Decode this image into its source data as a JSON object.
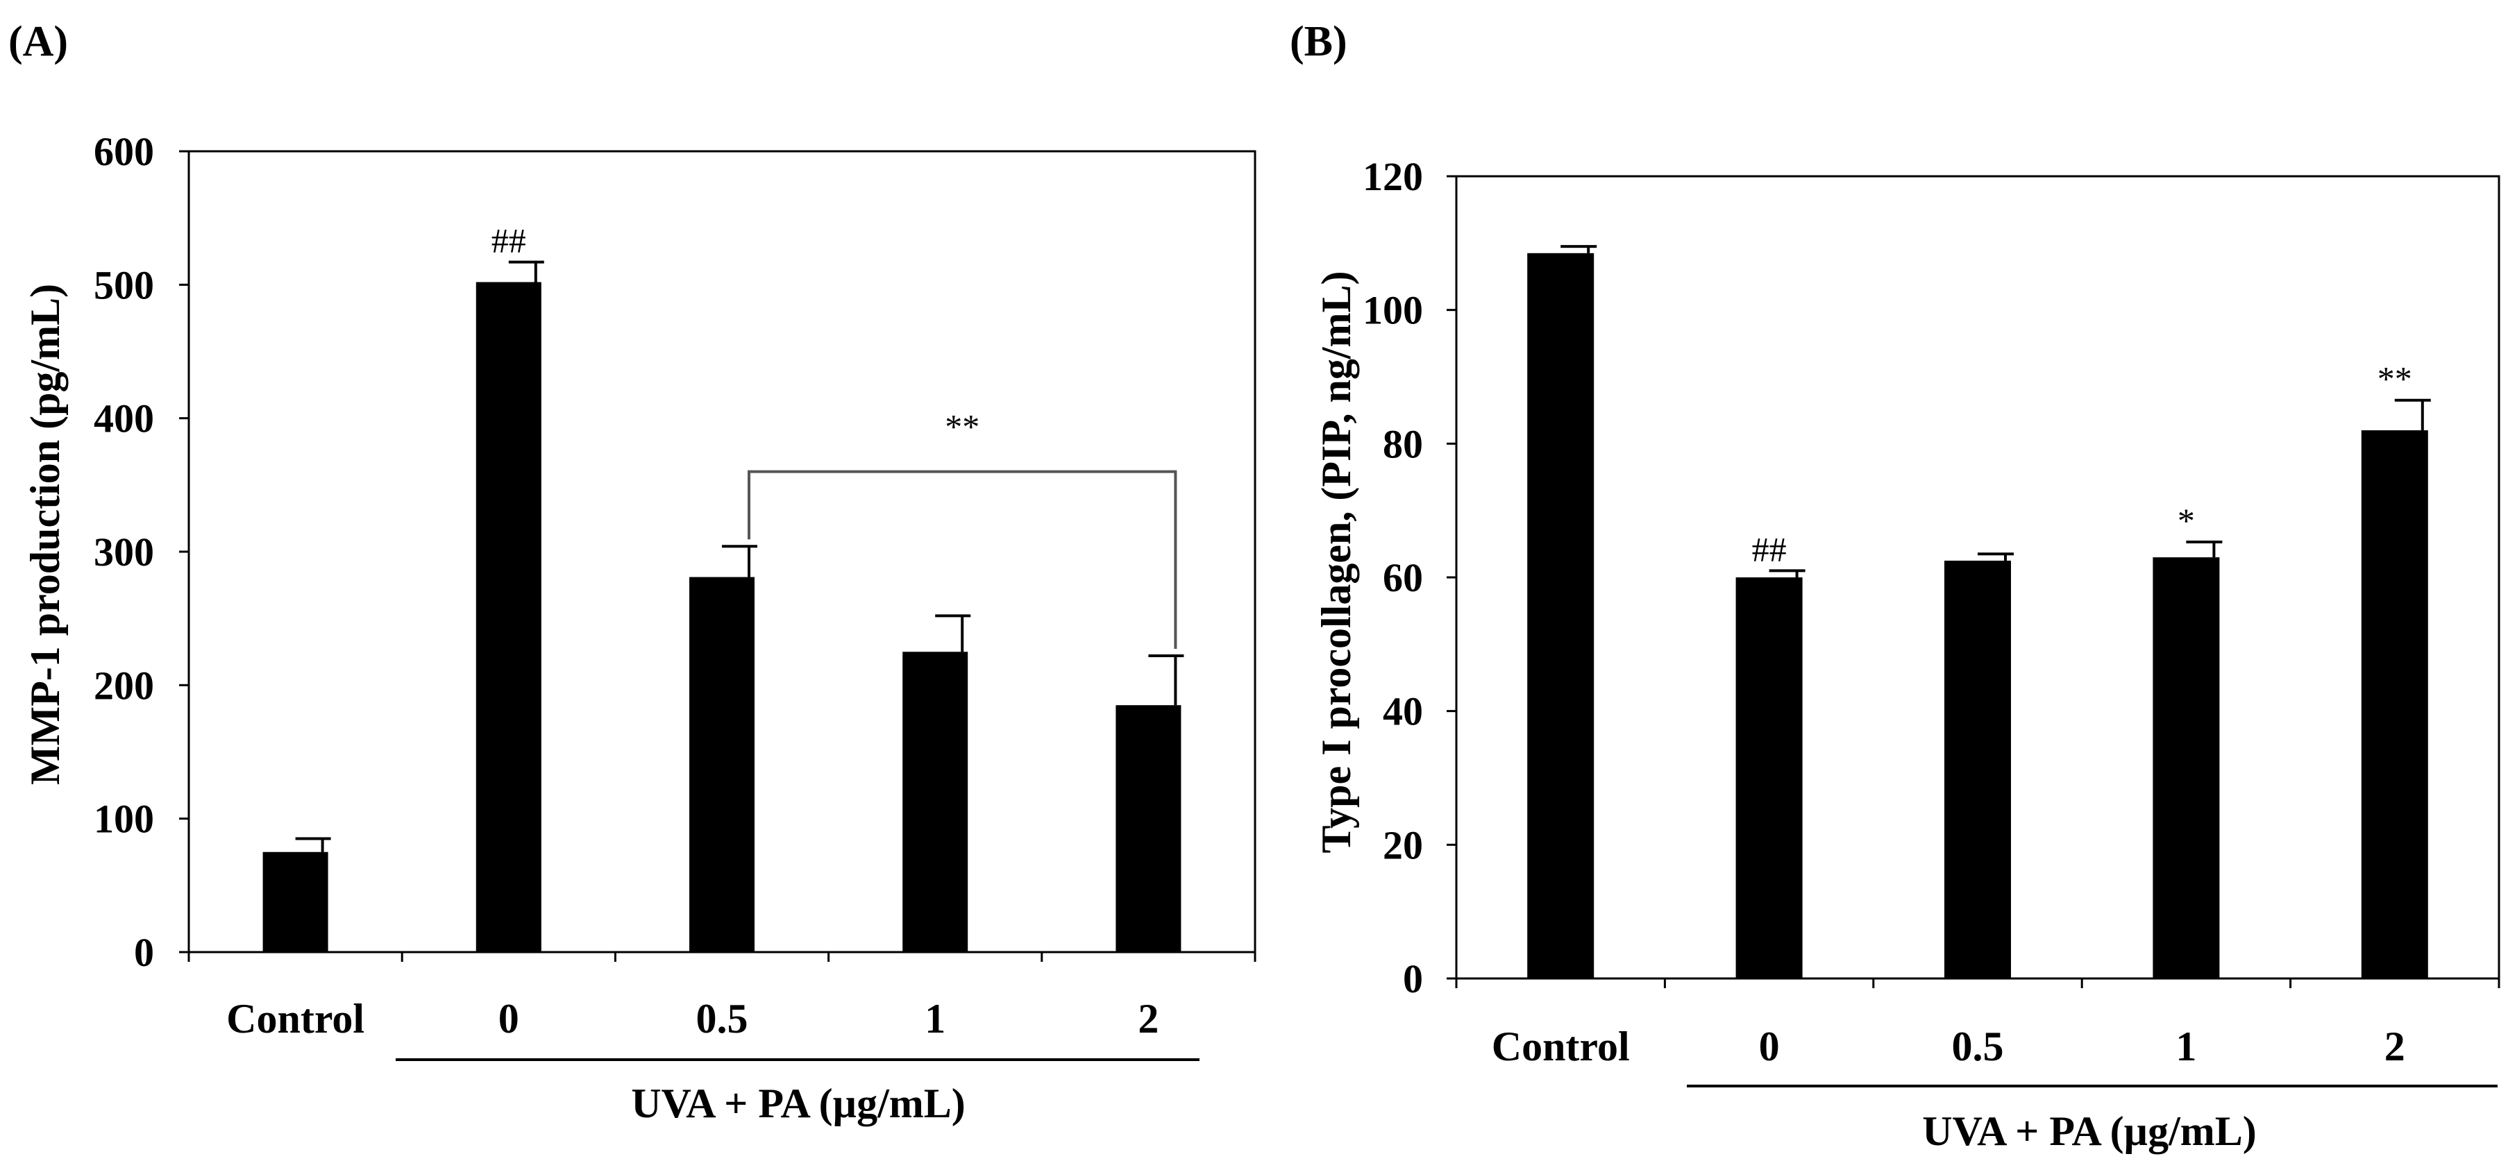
{
  "chart_data": [
    {
      "type": "bar",
      "panel_label": "(A)",
      "title": "",
      "ylabel": "MMP-1 production  (pg/mL)",
      "xlabel": "UVA +  PA (µg/mL)",
      "ylim": [
        0,
        600
      ],
      "yticks": [
        "0",
        "100",
        "200",
        "300",
        "400",
        "500",
        "600"
      ],
      "categories": [
        "Control",
        "0",
        "0.5",
        "1",
        "2"
      ],
      "values": [
        75,
        502,
        281,
        225,
        185
      ],
      "errors": [
        10,
        15,
        23,
        27,
        37
      ],
      "annotations": [
        "",
        "##",
        "",
        "",
        ""
      ],
      "bracket": {
        "from": 2,
        "to": 4,
        "label": "**"
      },
      "bar_color": "#000000"
    },
    {
      "type": "bar",
      "panel_label": "(B)",
      "title": "",
      "ylabel": "Type I procollagen,  (PIP,  ng/mL)",
      "xlabel": "UVA + PA (µg/mL)",
      "ylim": [
        0,
        120
      ],
      "yticks": [
        "0",
        "20",
        "40",
        "60",
        "80",
        "100",
        "120"
      ],
      "categories": [
        "Control",
        "0",
        "0.5",
        "1",
        "2"
      ],
      "values": [
        108.5,
        60,
        62.5,
        63,
        82
      ],
      "errors": [
        1,
        1,
        1,
        2.3,
        4.5
      ],
      "annotations": [
        "",
        "##",
        "",
        "*",
        "**"
      ],
      "bar_color": "#000000"
    }
  ]
}
